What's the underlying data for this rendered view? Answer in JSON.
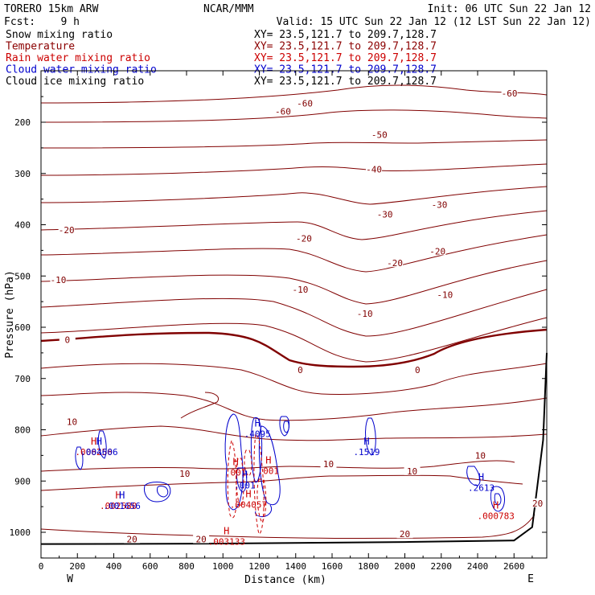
{
  "header": {
    "model": "TORERO  15km ARW",
    "center": "NCAR/MMM",
    "init": "Init: 06 UTC Sun 22 Jan 12",
    "fcst": "Fcst:    9 h",
    "valid": "Valid: 15 UTC Sun 22 Jan 12 (12 LST Sun 22 Jan 12)"
  },
  "legend": [
    {
      "field": "Snow mixing ratio",
      "xy": "XY=  23.5,121.7 to 209.7,128.7",
      "color": "#000000"
    },
    {
      "field": "Temperature",
      "xy": "XY=  23.5,121.7 to 209.7,128.7",
      "color": "#8b0000"
    },
    {
      "field": "Rain water mixing ratio",
      "xy": "XY=  23.5,121.7 to 209.7,128.7",
      "color": "#cc0000"
    },
    {
      "field": "Cloud water mixing ratio",
      "xy": "XY=  23.5,121.7 to 209.7,128.7",
      "color": "#0000cc"
    },
    {
      "field": "Cloud ice mixing ratio",
      "xy": "XY=  23.5,121.7 to 209.7,128.7",
      "color": "#000000"
    }
  ],
  "colors": {
    "temperature": "#800000",
    "rain": "#cc0000",
    "cloud_water": "#0000cc",
    "snow": "#000000",
    "terrain": "#000000"
  },
  "chart_data": {
    "type": "line",
    "xlabel": "Distance (km)",
    "ylabel": "Pressure (hPa)",
    "xlim": [
      0,
      2780
    ],
    "ylim": [
      1050,
      105
    ],
    "x_ticks": [
      0,
      200,
      400,
      600,
      800,
      1000,
      1200,
      1400,
      1600,
      1800,
      2000,
      2200,
      2400,
      2600
    ],
    "y_ticks": [
      200,
      300,
      400,
      500,
      600,
      700,
      800,
      900,
      1000
    ],
    "x_end_labels": {
      "left": "W",
      "right": "E"
    },
    "contour_labels": [
      {
        "text": "-60",
        "x": 1330,
        "y": 180
      },
      {
        "text": "-60",
        "x": 1450,
        "y": 165
      },
      {
        "text": "-60",
        "x": 2575,
        "y": 145
      },
      {
        "text": "-50",
        "x": 1860,
        "y": 226
      },
      {
        "text": "-40",
        "x": 1830,
        "y": 293
      },
      {
        "text": "-30",
        "x": 1890,
        "y": 381
      },
      {
        "text": "-30",
        "x": 2190,
        "y": 362
      },
      {
        "text": "-20",
        "x": 140,
        "y": 412
      },
      {
        "text": "-20",
        "x": 1445,
        "y": 428
      },
      {
        "text": "-20",
        "x": 1945,
        "y": 476
      },
      {
        "text": "-20",
        "x": 2180,
        "y": 453
      },
      {
        "text": "-10",
        "x": 95,
        "y": 509
      },
      {
        "text": "-10",
        "x": 1425,
        "y": 528
      },
      {
        "text": "-10",
        "x": 1780,
        "y": 575
      },
      {
        "text": "-10",
        "x": 2220,
        "y": 538
      },
      {
        "text": "0",
        "x": 145,
        "y": 626
      },
      {
        "text": "0",
        "x": 1425,
        "y": 685
      },
      {
        "text": "0",
        "x": 2070,
        "y": 685
      },
      {
        "text": "10",
        "x": 170,
        "y": 786
      },
      {
        "text": "10",
        "x": 790,
        "y": 887
      },
      {
        "text": "10",
        "x": 1580,
        "y": 868
      },
      {
        "text": "10",
        "x": 2040,
        "y": 882
      },
      {
        "text": "10",
        "x": 2415,
        "y": 852
      },
      {
        "text": "20",
        "x": 2730,
        "y": 945
      },
      {
        "text": "20",
        "x": 2000,
        "y": 1005
      },
      {
        "text": "20",
        "x": 500,
        "y": 1015
      },
      {
        "text": "20",
        "x": 880,
        "y": 1015
      }
    ],
    "maxima": [
      {
        "mark": "H",
        "value": ".003133",
        "color": "#cc0000",
        "x": 1020,
        "y": 1010
      },
      {
        "mark": "H",
        "value": ".004057",
        "color": "#cc0000",
        "x": 1140,
        "y": 938
      },
      {
        "mark": "H",
        "value": ".002580",
        "color": "#cc0000",
        "x": 425,
        "y": 940
      },
      {
        "mark": "H",
        "value": ".001656",
        "color": "#0000cc",
        "x": 445,
        "y": 940
      },
      {
        "mark": "H",
        "value": ".006256",
        "color": "#cc0000",
        "x": 290,
        "y": 835
      },
      {
        "mark": "H",
        "value": ".004606",
        "color": "#0000cc",
        "x": 320,
        "y": 835
      },
      {
        "mark": "H",
        "value": ".4095",
        "color": "#0000cc",
        "x": 1190,
        "y": 800
      },
      {
        "mark": "H",
        "value": ".001",
        "color": "#cc0000",
        "x": 1070,
        "y": 875
      },
      {
        "mark": "H",
        "value": ".001",
        "color": "#0000cc",
        "x": 1120,
        "y": 900
      },
      {
        "mark": "H",
        "value": ".001",
        "color": "#cc0000",
        "x": 1250,
        "y": 872
      },
      {
        "mark": "H",
        "value": ".1519",
        "color": "#0000cc",
        "x": 1790,
        "y": 835
      },
      {
        "mark": "H",
        "value": ".2613",
        "color": "#0000cc",
        "x": 2420,
        "y": 905
      },
      {
        "mark": "H",
        "value": ".000783",
        "color": "#cc0000",
        "x": 2500,
        "y": 960
      }
    ],
    "terrain_surface_hPa": [
      {
        "x": 0,
        "y": 1023
      },
      {
        "x": 1000,
        "y": 1022
      },
      {
        "x": 2000,
        "y": 1019
      },
      {
        "x": 2600,
        "y": 1016
      },
      {
        "x": 2700,
        "y": 990
      },
      {
        "x": 2760,
        "y": 820
      },
      {
        "x": 2780,
        "y": 650
      }
    ]
  }
}
